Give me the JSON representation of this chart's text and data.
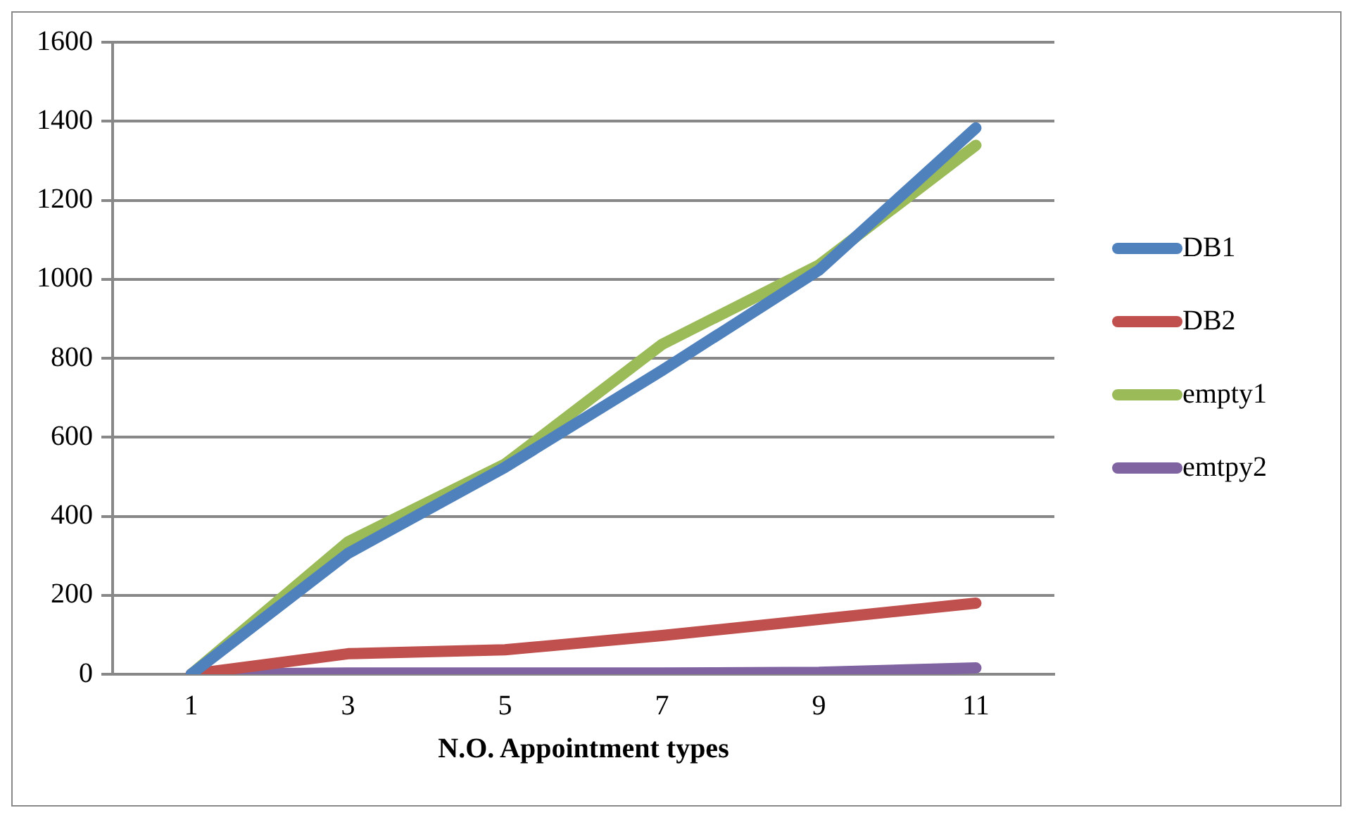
{
  "chart_data": {
    "type": "line",
    "xlabel": "N.O. Appointment types",
    "categories": [
      "1",
      "3",
      "5",
      "7",
      "9",
      "11"
    ],
    "series": [
      {
        "name": "DB1",
        "color": "#4f81bd",
        "values": [
          0,
          306,
          524,
          769,
          1023,
          1383
        ]
      },
      {
        "name": "DB2",
        "color": "#c0504d",
        "values": [
          0,
          52,
          62,
          98,
          139,
          180
        ]
      },
      {
        "name": "empty1",
        "color": "#9bbb59",
        "values": [
          0,
          335,
          532,
          835,
          1036,
          1339
        ]
      },
      {
        "name": "emtpy2",
        "color": "#8064a2",
        "values": [
          0,
          3,
          3,
          3,
          5,
          16
        ]
      }
    ],
    "ylim": [
      0,
      1600
    ],
    "yticks": [
      0,
      200,
      400,
      600,
      800,
      1000,
      1200,
      1400,
      1600
    ],
    "grid": "y",
    "legend": "right",
    "marker": "none"
  }
}
